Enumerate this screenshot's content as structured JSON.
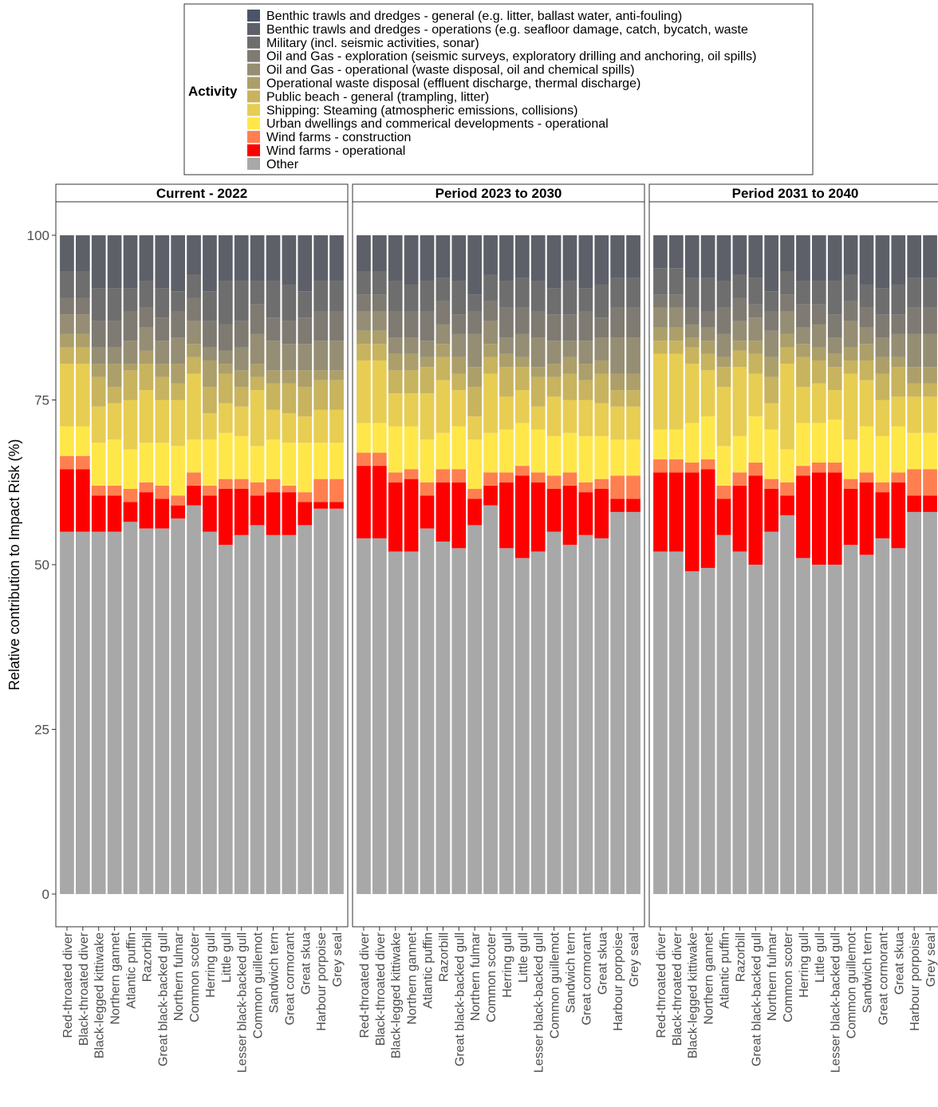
{
  "chart_data": {
    "type": "bar",
    "stacked": true,
    "ylabel": "Relative contribution to Impact Risk (%)",
    "xlabel": "",
    "ylim": [
      0,
      105
    ],
    "yticks": [
      0,
      25,
      50,
      75,
      100
    ],
    "grid": false,
    "legend": {
      "title": "Activity",
      "placement": "top",
      "entries": [
        {
          "label": "Benthic trawls and dredges - general (e.g. litter, ballast water, anti-fouling)",
          "color": "#4b5468"
        },
        {
          "label": "Benthic trawls and dredges - operations (e.g. seafloor damage, catch, bycatch, waste",
          "color": "#5d6068"
        },
        {
          "label": "Military (incl. seismic activities, sonar)",
          "color": "#6e6e6e"
        },
        {
          "label": "Oil and Gas - exploration (seismic surveys, exploratory drilling and anchoring, oil spills)",
          "color": "#7f7a72"
        },
        {
          "label": "Oil and Gas - operational (waste disposal, oil and chemical spills)",
          "color": "#958e74"
        },
        {
          "label": "Operational waste disposal (effluent discharge, thermal discharge)",
          "color": "#ac9f6a"
        },
        {
          "label": "Public beach - general (trampling, litter)",
          "color": "#c8b35f"
        },
        {
          "label": "Shipping: Steaming (atmospheric emissions, collisions)",
          "color": "#e8cd53"
        },
        {
          "label": "Urban dwellings and commerical developments - operational",
          "color": "#ffe74a"
        },
        {
          "label": "Wind farms - construction",
          "color": "#ff7f50"
        },
        {
          "label": "Wind farms - operational",
          "color": "#ff0000"
        },
        {
          "label": "Other",
          "color": "#a8a8a8"
        }
      ]
    },
    "categories": [
      "Red-throated diver",
      "Black-throated diver",
      "Black-legged kittiwake",
      "Northern gannet",
      "Atlantic puffin",
      "Razorbill",
      "Great black-backed gull",
      "Northern fulmar",
      "Common scoter",
      "Herring gull",
      "Little gull",
      "Lesser black-backed gull",
      "Common guillemot",
      "Sandwich tern",
      "Great cormorant",
      "Great skua",
      "Harbour porpoise",
      "Grey seal"
    ],
    "panels": [
      {
        "title": "Current - 2022",
        "cumulative_boundaries": [
          [
            55.0,
            64.5,
            66.5,
            71.0,
            80.5,
            83.0,
            85.0,
            88.0,
            90.5,
            94.5,
            100
          ],
          [
            55.0,
            64.5,
            66.5,
            71.0,
            80.5,
            83.0,
            85.0,
            88.0,
            90.5,
            94.5,
            100
          ],
          [
            55.0,
            60.5,
            62.0,
            68.5,
            74.0,
            78.5,
            80.5,
            83.0,
            87.0,
            92.0,
            100
          ],
          [
            55.0,
            60.5,
            62.0,
            69.0,
            74.5,
            77.0,
            80.5,
            83.0,
            87.0,
            92.0,
            100
          ],
          [
            56.5,
            59.5,
            61.5,
            67.5,
            75.0,
            79.5,
            80.5,
            84.0,
            88.5,
            92.0,
            100
          ],
          [
            55.5,
            61.0,
            62.5,
            68.5,
            76.5,
            80.5,
            82.5,
            86.0,
            89.0,
            93.0,
            100
          ],
          [
            55.5,
            60.0,
            62.0,
            68.5,
            75.0,
            78.5,
            80.5,
            84.0,
            87.5,
            92.0,
            100
          ],
          [
            57.0,
            59.0,
            60.5,
            68.0,
            75.0,
            77.5,
            80.5,
            84.5,
            88.5,
            91.5,
            100
          ],
          [
            59.0,
            62.0,
            64.0,
            69.0,
            79.0,
            81.5,
            83.5,
            87.0,
            90.5,
            94.0,
            100
          ],
          [
            55.0,
            60.5,
            62.0,
            69.0,
            73.0,
            77.0,
            81.0,
            83.0,
            87.0,
            91.5,
            100
          ],
          [
            53.0,
            61.5,
            63.0,
            70.0,
            74.5,
            79.0,
            80.5,
            82.5,
            86.5,
            93.0,
            100
          ],
          [
            54.5,
            61.5,
            63.0,
            69.5,
            74.0,
            77.0,
            79.5,
            83.0,
            87.0,
            93.0,
            100
          ],
          [
            56.0,
            60.5,
            62.5,
            68.0,
            76.5,
            78.5,
            80.5,
            85.0,
            89.5,
            93.0,
            100
          ],
          [
            54.5,
            61.0,
            63.0,
            69.0,
            73.5,
            77.5,
            79.5,
            84.0,
            87.5,
            93.0,
            100
          ],
          [
            54.5,
            61.0,
            62.0,
            68.5,
            73.0,
            77.5,
            79.5,
            83.5,
            87.0,
            92.5,
            100
          ],
          [
            56.0,
            59.5,
            61.0,
            68.5,
            72.5,
            77.0,
            79.5,
            83.5,
            87.5,
            91.5,
            100
          ],
          [
            58.5,
            59.5,
            63.0,
            68.5,
            73.5,
            78.0,
            79.5,
            84.0,
            88.5,
            93.0,
            100
          ],
          [
            58.5,
            59.5,
            63.0,
            68.5,
            73.5,
            78.0,
            79.5,
            84.0,
            88.5,
            93.0,
            100
          ]
        ]
      },
      {
        "title": "Period 2023 to 2030",
        "cumulative_boundaries": [
          [
            54.0,
            65.0,
            67.0,
            71.5,
            81.0,
            83.5,
            85.5,
            88.5,
            91.0,
            94.5,
            100
          ],
          [
            54.0,
            65.0,
            67.0,
            71.5,
            81.0,
            83.5,
            85.5,
            88.5,
            91.0,
            94.5,
            100
          ],
          [
            52.0,
            62.5,
            64.0,
            71.0,
            76.0,
            79.5,
            82.0,
            84.5,
            88.5,
            93.0,
            100
          ],
          [
            52.0,
            63.0,
            64.5,
            71.0,
            76.0,
            79.5,
            82.0,
            84.5,
            88.5,
            92.5,
            100
          ],
          [
            55.5,
            60.5,
            62.5,
            69.0,
            76.0,
            80.0,
            81.5,
            84.0,
            88.5,
            93.0,
            100
          ],
          [
            53.5,
            62.5,
            64.5,
            70.0,
            78.0,
            81.5,
            83.5,
            86.5,
            90.0,
            93.5,
            100
          ],
          [
            52.5,
            62.5,
            64.5,
            71.0,
            76.5,
            79.0,
            81.5,
            85.0,
            88.0,
            93.0,
            100
          ],
          [
            56.0,
            60.0,
            61.5,
            69.0,
            72.5,
            77.0,
            80.0,
            85.0,
            88.5,
            91.0,
            100
          ],
          [
            59.0,
            62.0,
            64.0,
            70.0,
            79.0,
            81.5,
            83.5,
            87.0,
            90.0,
            94.0,
            100
          ],
          [
            52.5,
            62.5,
            64.0,
            70.5,
            75.5,
            80.0,
            82.0,
            84.5,
            89.0,
            93.0,
            100
          ],
          [
            51.0,
            63.5,
            65.0,
            71.5,
            76.5,
            80.0,
            81.5,
            85.0,
            89.0,
            93.5,
            100
          ],
          [
            52.0,
            62.5,
            64.0,
            70.5,
            74.0,
            78.5,
            80.0,
            84.5,
            88.5,
            93.0,
            100
          ],
          [
            55.0,
            61.5,
            63.5,
            69.5,
            75.5,
            78.5,
            80.5,
            84.0,
            88.0,
            92.0,
            100
          ],
          [
            53.0,
            62.0,
            64.0,
            70.0,
            75.0,
            79.0,
            81.5,
            84.0,
            88.0,
            93.0,
            100
          ],
          [
            54.5,
            61.0,
            62.5,
            69.5,
            75.0,
            78.0,
            80.5,
            84.0,
            88.5,
            92.0,
            100
          ],
          [
            54.0,
            61.5,
            63.0,
            69.5,
            74.5,
            79.0,
            81.0,
            84.5,
            87.5,
            92.5,
            100
          ],
          [
            58.0,
            60.0,
            63.5,
            69.0,
            74.0,
            76.5,
            79.0,
            84.5,
            89.0,
            93.5,
            100
          ],
          [
            58.0,
            60.0,
            63.5,
            69.0,
            74.0,
            76.5,
            79.0,
            84.5,
            89.0,
            93.5,
            100
          ]
        ]
      },
      {
        "title": "Period 2031 to 2040",
        "cumulative_boundaries": [
          [
            52.0,
            64.0,
            66.0,
            70.5,
            82.0,
            84.0,
            86.0,
            89.0,
            91.0,
            95.0,
            100
          ],
          [
            52.0,
            64.0,
            66.0,
            70.5,
            82.0,
            84.0,
            86.0,
            89.0,
            91.0,
            95.0,
            100
          ],
          [
            49.0,
            64.0,
            65.5,
            71.5,
            80.5,
            83.0,
            84.5,
            86.5,
            89.0,
            93.5,
            100
          ],
          [
            49.5,
            64.5,
            66.0,
            72.5,
            79.5,
            82.0,
            84.0,
            86.0,
            88.5,
            93.5,
            100
          ],
          [
            54.5,
            60.0,
            62.0,
            68.0,
            77.0,
            80.0,
            81.5,
            85.0,
            89.0,
            93.0,
            100
          ],
          [
            52.0,
            62.0,
            64.0,
            69.5,
            80.0,
            82.5,
            84.0,
            87.0,
            90.5,
            94.0,
            100
          ],
          [
            50.0,
            63.5,
            65.5,
            72.5,
            79.0,
            82.0,
            84.0,
            87.5,
            89.5,
            93.5,
            100
          ],
          [
            55.0,
            61.5,
            63.0,
            70.5,
            74.5,
            78.5,
            81.5,
            85.5,
            88.5,
            91.5,
            100
          ],
          [
            57.5,
            60.5,
            62.5,
            67.5,
            80.5,
            83.0,
            85.0,
            88.5,
            91.0,
            94.5,
            100
          ],
          [
            51.0,
            63.5,
            65.0,
            71.5,
            77.0,
            81.5,
            83.5,
            86.0,
            89.5,
            93.0,
            100
          ],
          [
            50.0,
            64.0,
            65.5,
            71.5,
            77.5,
            81.0,
            83.0,
            86.5,
            89.5,
            93.0,
            100
          ],
          [
            50.0,
            64.0,
            65.5,
            72.0,
            76.5,
            80.0,
            82.0,
            84.5,
            88.0,
            93.0,
            100
          ],
          [
            53.0,
            61.5,
            63.0,
            69.0,
            79.0,
            81.0,
            83.0,
            87.0,
            90.0,
            94.0,
            100
          ],
          [
            51.5,
            62.5,
            64.0,
            71.0,
            78.0,
            81.0,
            83.5,
            86.0,
            89.0,
            92.5,
            100
          ],
          [
            54.0,
            61.0,
            62.5,
            69.5,
            75.0,
            79.0,
            81.5,
            84.5,
            88.0,
            92.0,
            100
          ],
          [
            52.5,
            62.5,
            64.0,
            71.0,
            75.5,
            80.0,
            81.5,
            85.0,
            88.0,
            92.5,
            100
          ],
          [
            58.0,
            60.5,
            64.5,
            70.0,
            75.5,
            77.5,
            80.0,
            85.0,
            89.0,
            93.5,
            100
          ],
          [
            58.0,
            60.5,
            64.5,
            70.0,
            75.5,
            77.5,
            80.0,
            85.0,
            89.0,
            93.5,
            100
          ]
        ]
      }
    ],
    "stack_order_bottom_to_top": [
      "Other",
      "Wind farms - operational",
      "Wind farms - construction",
      "Urban dwellings and commerical developments - operational",
      "Shipping: Steaming (atmospheric emissions, collisions)",
      "Public beach - general (trampling, litter)",
      "Operational waste disposal (effluent discharge, thermal discharge)",
      "Oil and Gas - operational (waste disposal, oil and chemical spills)",
      "Oil and Gas - exploration (seismic surveys, exploratory drilling and anchoring, oil spills)",
      "Military (incl. seismic activities, sonar)",
      "Benthic trawls and dredges - operations (e.g. seafloor damage, catch, bycatch, waste",
      "Benthic trawls and dredges - general (e.g. litter, ballast water, anti-fouling)"
    ]
  }
}
